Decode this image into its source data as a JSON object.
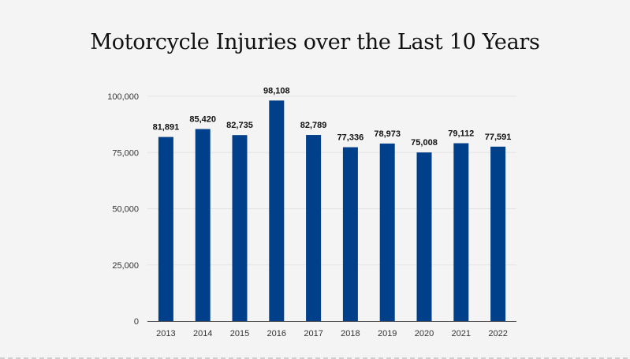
{
  "chart_data": {
    "type": "bar",
    "title": "Motorcycle Injuries over the Last 10 Years",
    "categories": [
      "2013",
      "2014",
      "2015",
      "2016",
      "2017",
      "2018",
      "2019",
      "2020",
      "2021",
      "2022"
    ],
    "values": [
      81891,
      85420,
      82735,
      98108,
      82789,
      77336,
      78973,
      75008,
      79112,
      77591
    ],
    "value_labels": [
      "81,891",
      "85,420",
      "82,735",
      "98,108",
      "82,789",
      "77,336",
      "78,973",
      "75,008",
      "79,112",
      "77,591"
    ],
    "y_ticks": [
      0,
      25000,
      50000,
      75000,
      100000
    ],
    "y_tick_labels": [
      "0",
      "25,000",
      "50,000",
      "75,000",
      "100,000"
    ],
    "ylim": [
      0,
      100000
    ],
    "xlabel": "",
    "ylabel": "",
    "grid": true,
    "bar_color": "#003f8a",
    "grid_color": "#e3e3e3",
    "axis_color": "#555555"
  }
}
